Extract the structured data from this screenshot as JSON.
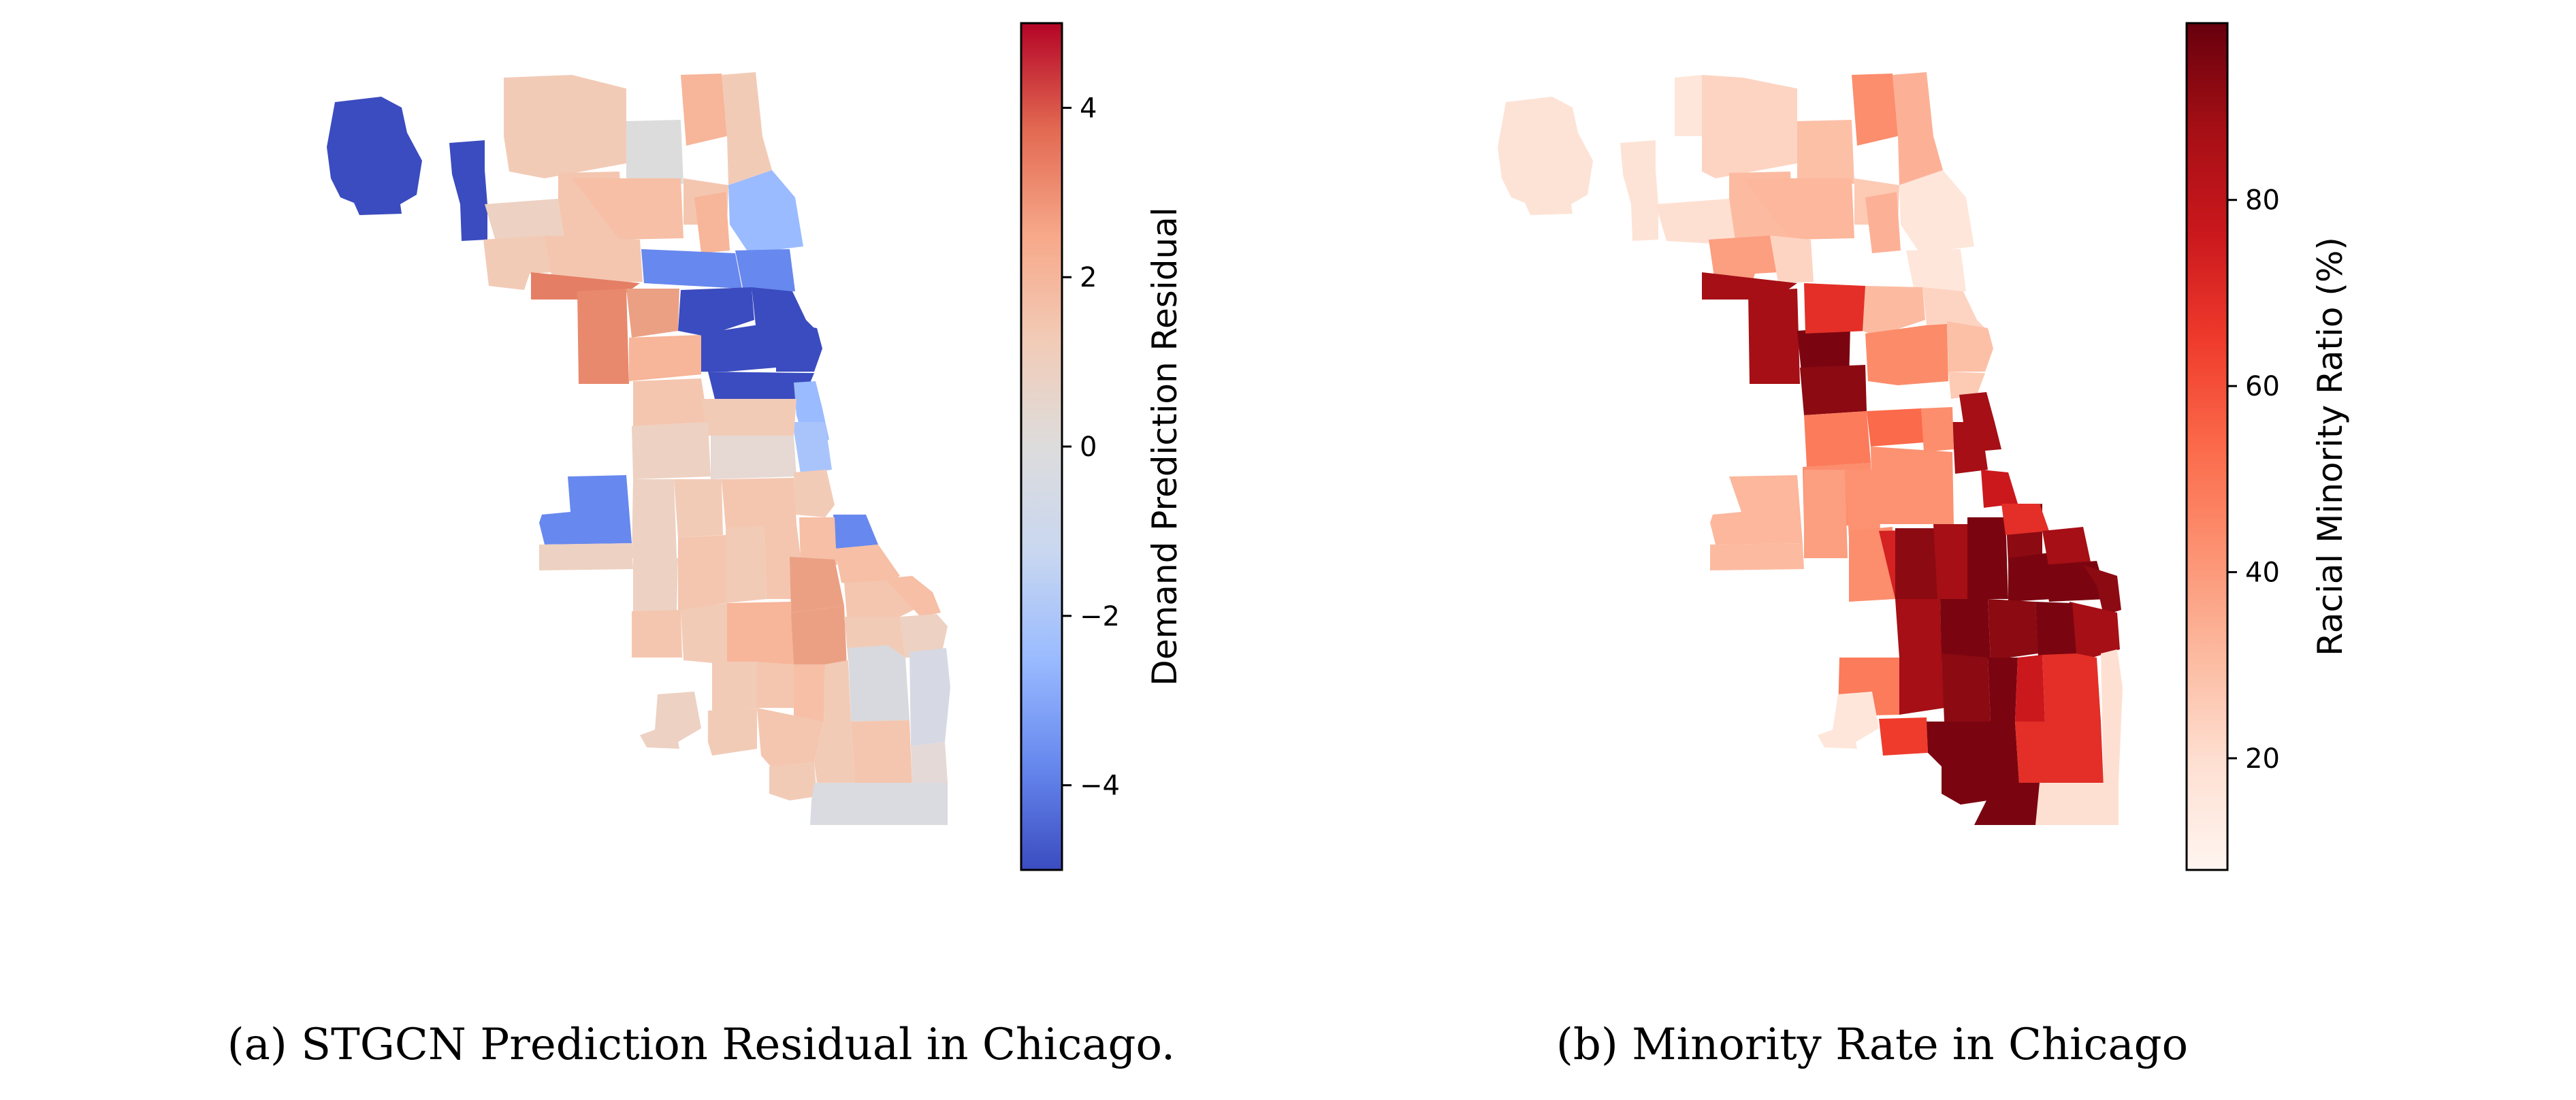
{
  "panels": [
    {
      "id": "a",
      "caption": "(a) STGCN Prediction Residual in Chicago.",
      "colorbar": {
        "label": "Demand Prediction Residual",
        "colormap": "coolwarm",
        "range": [
          -5,
          5
        ],
        "ticks": [
          {
            "value": 4,
            "label": "4"
          },
          {
            "value": 2,
            "label": "2"
          },
          {
            "value": 0,
            "label": "0"
          },
          {
            "value": -2,
            "label": "−2"
          },
          {
            "value": -4,
            "label": "−4"
          }
        ]
      }
    },
    {
      "id": "b",
      "caption": "(b) Minority Rate in Chicago",
      "colorbar": {
        "label": "Racial Minority Ratio (%)",
        "colormap": "Reds",
        "range": [
          8,
          99
        ],
        "ticks": [
          {
            "value": 80,
            "label": "80"
          },
          {
            "value": 60,
            "label": "60"
          },
          {
            "value": 40,
            "label": "40"
          },
          {
            "value": 20,
            "label": "20"
          }
        ]
      }
    }
  ],
  "colors": {
    "coolwarm": [
      "#3b4cc0",
      "#6788ee",
      "#9abbff",
      "#c9d7f0",
      "#dddcdc",
      "#edd1c2",
      "#f7a889",
      "#e26952",
      "#b40426"
    ],
    "reds": [
      "#fff5f0",
      "#fee0d2",
      "#fcbba1",
      "#fc9272",
      "#fb6a4a",
      "#ef3b2c",
      "#cb181d",
      "#a50f15",
      "#67000d"
    ]
  }
}
